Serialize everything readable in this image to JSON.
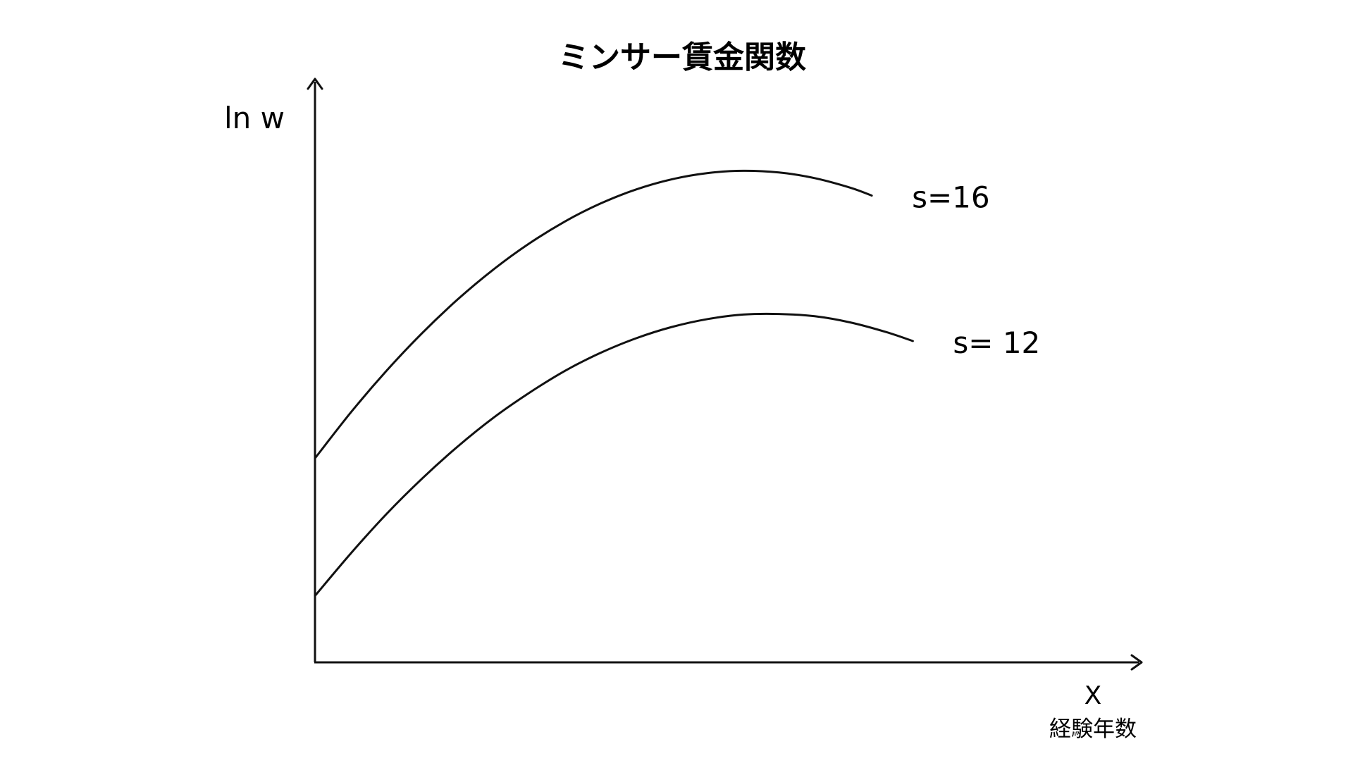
{
  "chart_data": {
    "type": "line",
    "title": "ミンサー賃金関数",
    "ylabel": "ln w",
    "xlabel": "X",
    "xlabel_sub": "経験年数",
    "grid": false,
    "ticks": false,
    "xlim": [
      0,
      40
    ],
    "ylim": [
      0,
      10
    ],
    "series": [
      {
        "name": "s=16",
        "x": [
          0,
          2,
          4,
          6,
          8,
          10,
          12,
          14,
          16,
          18,
          20,
          22,
          24,
          26,
          28,
          30,
          31.2
        ],
        "values": [
          3.62,
          4.43,
          5.17,
          5.84,
          6.44,
          6.97,
          7.43,
          7.82,
          8.14,
          8.39,
          8.57,
          8.68,
          8.72,
          8.69,
          8.59,
          8.42,
          8.28
        ]
      },
      {
        "name": "s= 12",
        "x": [
          0,
          2,
          4,
          6,
          8,
          10,
          12,
          14,
          16,
          18,
          20,
          22,
          24,
          26,
          28,
          30,
          32,
          33.5
        ],
        "values": [
          1.18,
          1.93,
          2.63,
          3.26,
          3.83,
          4.34,
          4.78,
          5.17,
          5.49,
          5.75,
          5.95,
          6.09,
          6.17,
          6.18,
          6.14,
          6.03,
          5.86,
          5.7
        ]
      }
    ]
  }
}
